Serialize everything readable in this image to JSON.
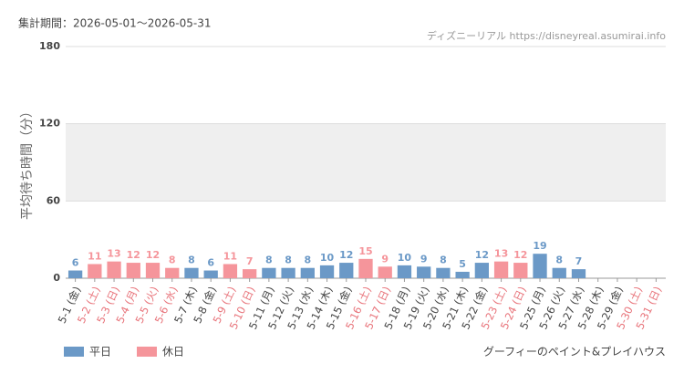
{
  "chart_data": {
    "type": "bar",
    "title": "集計期間：2026-05-01〜2026-05-31",
    "source": "ディズニーリアル https://disneyreal.asumirai.info",
    "ylabel": "平均待ち時間（分）",
    "footer": "グーフィーのペイント&プレイハウス",
    "categories": [
      "5-1 (金)",
      "5-2 (土)",
      "5-3 (日)",
      "5-4 (月)",
      "5-5 (火)",
      "5-6 (水)",
      "5-7 (木)",
      "5-8 (金)",
      "5-9 (土)",
      "5-10 (日)",
      "5-11 (月)",
      "5-12 (火)",
      "5-13 (水)",
      "5-14 (木)",
      "5-15 (金)",
      "5-16 (土)",
      "5-17 (日)",
      "5-18 (月)",
      "5-19 (火)",
      "5-20 (水)",
      "5-21 (木)",
      "5-22 (金)",
      "5-23 (土)",
      "5-24 (日)",
      "5-25 (月)",
      "5-26 (火)",
      "5-27 (水)",
      "5-28 (木)",
      "5-29 (金)",
      "5-30 (土)",
      "5-31 (日)"
    ],
    "category_colors": [
      "#444",
      "#e8737a",
      "#e8737a",
      "#e8737a",
      "#e8737a",
      "#e8737a",
      "#444",
      "#444",
      "#e8737a",
      "#e8737a",
      "#444",
      "#444",
      "#444",
      "#444",
      "#444",
      "#e8737a",
      "#e8737a",
      "#444",
      "#444",
      "#444",
      "#444",
      "#444",
      "#e8737a",
      "#e8737a",
      "#444",
      "#444",
      "#444",
      "#444",
      "#444",
      "#e8737a",
      "#e8737a"
    ],
    "series": [
      {
        "name": "平日",
        "color": "#6b99c7",
        "values": [
          6,
          null,
          null,
          null,
          null,
          null,
          8,
          6,
          null,
          null,
          8,
          8,
          8,
          10,
          12,
          null,
          null,
          10,
          9,
          8,
          5,
          12,
          null,
          null,
          19,
          8,
          7,
          null,
          null,
          null,
          null
        ]
      },
      {
        "name": "休日",
        "color": "#f5959b",
        "values": [
          null,
          11,
          13,
          12,
          12,
          8,
          null,
          null,
          11,
          7,
          null,
          null,
          null,
          null,
          null,
          15,
          9,
          null,
          null,
          null,
          null,
          null,
          13,
          12,
          null,
          null,
          null,
          null,
          null,
          null,
          null
        ]
      }
    ],
    "ylim": [
      0,
      180
    ],
    "yticks": [
      0,
      60,
      120,
      180
    ],
    "grid": true
  }
}
